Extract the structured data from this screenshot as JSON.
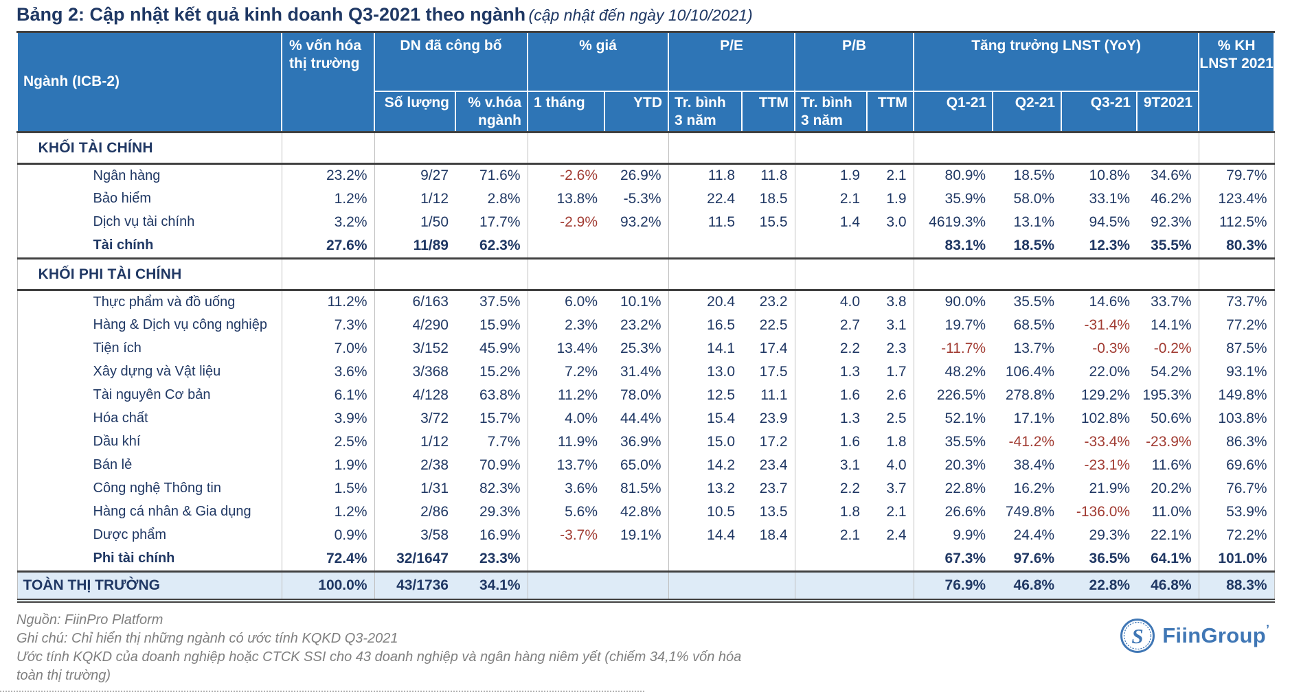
{
  "title": {
    "main": "Bảng 2: Cập nhật kết quả kinh doanh Q3-2021 theo ngành",
    "note": "(cập nhật đến ngày 10/10/2021)"
  },
  "table": {
    "header": {
      "nganh": "Ngành (ICB-2)",
      "von_hoa": "% vốn hóa thị trường",
      "dn_cong_bo": "DN đã công bố",
      "so_luong": "Số lượng",
      "v_hoa_nganh": "% v.hóa ngành",
      "gia": "% giá",
      "thang_1": "1 tháng",
      "ytd": "YTD",
      "pe": "P/E",
      "pb": "P/B",
      "tb_3nam": "Tr. bình 3 năm",
      "ttm": "TTM",
      "tang_truong": "Tăng trưởng LNST (YoY)",
      "q1": "Q1-21",
      "q2": "Q2-21",
      "q3": "Q3-21",
      "t9": "9T2021",
      "kh": "% KH LNST 2021"
    },
    "column_order": [
      "% vốn hóa thị trường",
      "Số lượng",
      "% v.hóa ngành",
      "1 tháng",
      "YTD",
      "P/E Tr. bình 3 năm",
      "P/E TTM",
      "P/B Tr. bình 3 năm",
      "P/B TTM",
      "Q1-21",
      "Q2-21",
      "Q3-21",
      "9T2021",
      "% KH LNST 2021"
    ],
    "sections": [
      {
        "header": "KHỐI TÀI CHÍNH",
        "rows": [
          {
            "name": "Ngân hàng",
            "type": "item",
            "cells": [
              "23.2%",
              "9/27",
              "71.6%",
              "-2.6%",
              "26.9%",
              "11.8",
              "11.8",
              "1.9",
              "2.1",
              "80.9%",
              "18.5%",
              "10.8%",
              "34.6%",
              "79.7%"
            ],
            "red": [
              3
            ]
          },
          {
            "name": "Bảo hiểm",
            "type": "item",
            "cells": [
              "1.2%",
              "1/12",
              "2.8%",
              "13.8%",
              "-5.3%",
              "22.4",
              "18.5",
              "2.1",
              "1.9",
              "35.9%",
              "58.0%",
              "33.1%",
              "46.2%",
              "123.4%"
            ],
            "red": []
          },
          {
            "name": "Dịch vụ tài chính",
            "type": "item",
            "cells": [
              "3.2%",
              "1/50",
              "17.7%",
              "-2.9%",
              "93.2%",
              "11.5",
              "15.5",
              "1.4",
              "3.0",
              "4619.3%",
              "13.1%",
              "94.5%",
              "92.3%",
              "112.5%"
            ],
            "red": [
              3
            ]
          },
          {
            "name": "Tài chính",
            "type": "subtotal",
            "cells": [
              "27.6%",
              "11/89",
              "62.3%",
              "",
              "",
              "",
              "",
              "",
              "",
              "83.1%",
              "18.5%",
              "12.3%",
              "35.5%",
              "80.3%"
            ],
            "red": []
          }
        ]
      },
      {
        "header": "KHỐI PHI TÀI CHÍNH",
        "rows": [
          {
            "name": "Thực phẩm và đồ uống",
            "type": "item",
            "cells": [
              "11.2%",
              "6/163",
              "37.5%",
              "6.0%",
              "10.1%",
              "20.4",
              "23.2",
              "4.0",
              "3.8",
              "90.0%",
              "35.5%",
              "14.6%",
              "33.7%",
              "73.7%"
            ],
            "red": []
          },
          {
            "name": "Hàng & Dịch vụ công nghiệp",
            "type": "item",
            "cells": [
              "7.3%",
              "4/290",
              "15.9%",
              "2.3%",
              "23.2%",
              "16.5",
              "22.5",
              "2.7",
              "3.1",
              "19.7%",
              "68.5%",
              "-31.4%",
              "14.1%",
              "77.2%"
            ],
            "red": [
              11
            ]
          },
          {
            "name": "Tiện ích",
            "type": "item",
            "cells": [
              "7.0%",
              "3/152",
              "45.9%",
              "13.4%",
              "25.3%",
              "14.1",
              "17.4",
              "2.2",
              "2.3",
              "-11.7%",
              "13.7%",
              "-0.3%",
              "-0.2%",
              "87.5%"
            ],
            "red": [
              9,
              11,
              12
            ]
          },
          {
            "name": "Xây dựng và Vật liệu",
            "type": "item",
            "cells": [
              "3.6%",
              "3/368",
              "15.2%",
              "7.2%",
              "31.4%",
              "13.0",
              "17.5",
              "1.3",
              "1.7",
              "48.2%",
              "106.4%",
              "22.0%",
              "54.2%",
              "93.1%"
            ],
            "red": []
          },
          {
            "name": "Tài nguyên Cơ bản",
            "type": "item",
            "cells": [
              "6.1%",
              "4/128",
              "63.8%",
              "11.2%",
              "78.0%",
              "12.5",
              "11.1",
              "1.6",
              "2.6",
              "226.5%",
              "278.8%",
              "129.2%",
              "195.3%",
              "149.8%"
            ],
            "red": []
          },
          {
            "name": "Hóa chất",
            "type": "item",
            "cells": [
              "3.9%",
              "3/72",
              "15.7%",
              "4.0%",
              "44.4%",
              "15.4",
              "23.9",
              "1.3",
              "2.5",
              "52.1%",
              "17.1%",
              "102.8%",
              "50.6%",
              "103.8%"
            ],
            "red": []
          },
          {
            "name": "Dầu khí",
            "type": "item",
            "cells": [
              "2.5%",
              "1/12",
              "7.7%",
              "11.9%",
              "36.9%",
              "15.0",
              "17.2",
              "1.6",
              "1.8",
              "35.5%",
              "-41.2%",
              "-33.4%",
              "-23.9%",
              "86.3%"
            ],
            "red": [
              10,
              11,
              12
            ]
          },
          {
            "name": "Bán lẻ",
            "type": "item",
            "cells": [
              "1.9%",
              "2/38",
              "70.9%",
              "13.7%",
              "65.0%",
              "14.2",
              "23.4",
              "3.1",
              "4.0",
              "20.3%",
              "38.4%",
              "-23.1%",
              "11.6%",
              "69.6%"
            ],
            "red": [
              11
            ]
          },
          {
            "name": "Công nghệ Thông tin",
            "type": "item",
            "cells": [
              "1.5%",
              "1/31",
              "82.3%",
              "3.6%",
              "81.5%",
              "13.2",
              "23.7",
              "2.2",
              "3.7",
              "22.8%",
              "16.2%",
              "21.9%",
              "20.2%",
              "76.7%"
            ],
            "red": []
          },
          {
            "name": "Hàng cá nhân & Gia dụng",
            "type": "item",
            "cells": [
              "1.2%",
              "2/86",
              "29.3%",
              "5.6%",
              "42.8%",
              "10.5",
              "13.5",
              "1.8",
              "2.1",
              "26.6%",
              "749.8%",
              "-136.0%",
              "11.0%",
              "53.9%"
            ],
            "red": [
              11
            ]
          },
          {
            "name": "Dược phẩm",
            "type": "item",
            "cells": [
              "0.9%",
              "3/58",
              "16.9%",
              "-3.7%",
              "19.1%",
              "14.4",
              "18.4",
              "2.1",
              "2.4",
              "9.9%",
              "24.4%",
              "29.3%",
              "22.1%",
              "72.2%"
            ],
            "red": [
              3
            ]
          },
          {
            "name": "Phi tài chính",
            "type": "subtotal",
            "cells": [
              "72.4%",
              "32/1647",
              "23.3%",
              "",
              "",
              "",
              "",
              "",
              "",
              "67.3%",
              "97.6%",
              "36.5%",
              "64.1%",
              "101.0%"
            ],
            "red": []
          }
        ]
      }
    ],
    "total": {
      "name": "TOÀN THỊ TRƯỜNG",
      "cells": [
        "100.0%",
        "43/1736",
        "34.1%",
        "",
        "",
        "",
        "",
        "",
        "",
        "76.9%",
        "46.8%",
        "22.8%",
        "46.8%",
        "88.3%"
      ],
      "red": []
    }
  },
  "footer": {
    "source": "Nguồn: FiinPro Platform",
    "note1": "Ghi chú: Chỉ hiển thị những ngành có ước tính KQKD Q3-2021",
    "note2": "Ước tính KQKD của doanh nghiệp hoặc CTCK SSI cho 43 doanh nghiệp và ngân hàng niêm yết (chiếm 34,1% vốn hóa toàn thị trường)",
    "logo_text": "FiinGroup",
    "logo_mark": "’"
  },
  "colors": {
    "header_bg": "#2E75B6",
    "text_navy": "#203864",
    "title_navy": "#1F3864",
    "negative_red": "#A13B32",
    "total_row_bg": "#DEEBF7",
    "dark_border": "#404040",
    "gridline": "#BFBFBF",
    "note_gray": "#7F7F7F",
    "logo_blue": "#4077B5"
  }
}
